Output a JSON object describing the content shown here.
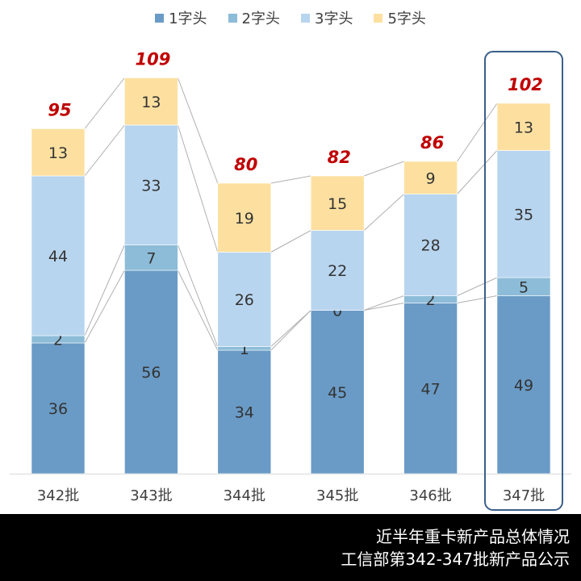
{
  "chart_data": {
    "type": "bar",
    "stacked": true,
    "categories": [
      "342批",
      "343批",
      "344批",
      "345批",
      "346批",
      "347批"
    ],
    "series": [
      {
        "name": "1字头",
        "color": "#6a9bc6",
        "values": [
          36,
          56,
          34,
          45,
          47,
          49
        ]
      },
      {
        "name": "2字头",
        "color": "#8cbcd8",
        "values": [
          2,
          7,
          1,
          0,
          2,
          5
        ]
      },
      {
        "name": "3字头",
        "color": "#b8d5ef",
        "values": [
          44,
          33,
          26,
          22,
          28,
          35
        ]
      },
      {
        "name": "5字头",
        "color": "#fde0a0",
        "values": [
          13,
          13,
          19,
          15,
          9,
          13
        ]
      }
    ],
    "totals": [
      95,
      109,
      80,
      82,
      86,
      102
    ],
    "highlighted_category": "347批",
    "legend_position": "top",
    "ylim": [
      0,
      115
    ]
  },
  "footer": {
    "line1": "近半年重卡新产品总体情况",
    "line2": "工信部第342-347批新产品公示"
  },
  "colors": {
    "total_label": "#c00000",
    "highlight_border": "#3a5f8a",
    "connector": "#b0b0b0"
  }
}
